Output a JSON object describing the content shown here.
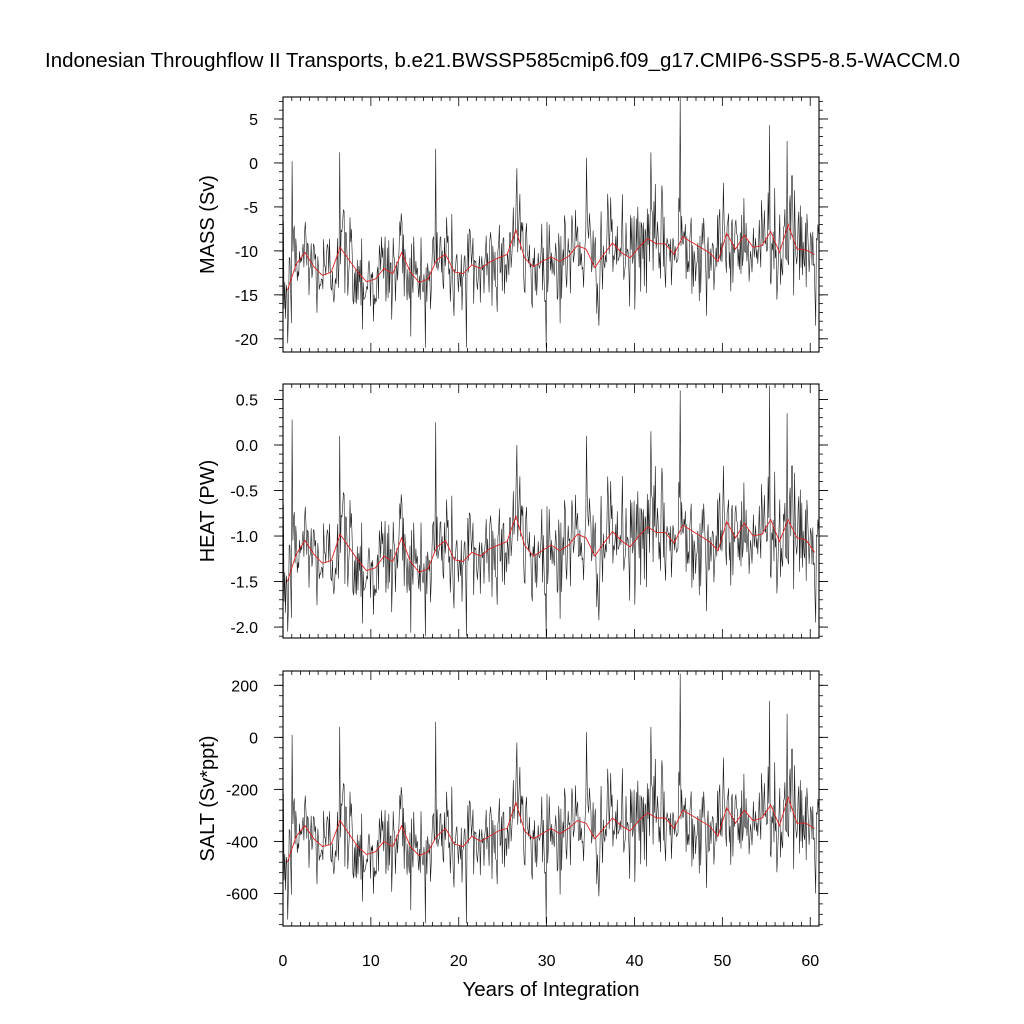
{
  "title": "Indonesian Throughflow II Transports, b.e21.BWSSP585cmip6.f09_g17.CMIP6-SSP5-8.5-WACCM.0",
  "xlabel": "Years of Integration",
  "colors": {
    "monthly": "#1a1a1a",
    "annual": "#e02020",
    "frame": "#000000"
  },
  "chart_data": [
    {
      "type": "line",
      "ylabel": "MASS (Sv)",
      "xlim": [
        0,
        61
      ],
      "ylim": [
        -21.5,
        7.5
      ],
      "yticks": [
        5,
        0,
        -5,
        -10,
        -15,
        -20
      ],
      "ytick_labels": [
        "5",
        "0",
        "-5",
        "-10",
        "-15",
        "-20"
      ],
      "xticks": [
        0,
        10,
        20,
        30,
        40,
        50,
        60
      ],
      "monthly_mean": -11.0,
      "monthly_sd": 3.0,
      "monthly_min": -21.0,
      "monthly_max": 7.4,
      "peaks": [
        [
          0.5,
          -20.5
        ],
        [
          1.0,
          0.2
        ],
        [
          6.4,
          1.2
        ],
        [
          17.3,
          1.6
        ],
        [
          20.8,
          -21.0
        ],
        [
          26.6,
          -0.6
        ],
        [
          34.5,
          0.6
        ],
        [
          41.8,
          1.2
        ],
        [
          45.2,
          7.4
        ],
        [
          55.3,
          4.3
        ],
        [
          57.3,
          2.5
        ],
        [
          60.6,
          -18.5
        ]
      ],
      "annual": [
        -14.5,
        -11.5,
        -10.2,
        -11.8,
        -12.8,
        -12.4,
        -9.6,
        -11.0,
        -12.4,
        -13.5,
        -13.2,
        -12.0,
        -12.6,
        -10.2,
        -12.4,
        -13.6,
        -13.2,
        -11.0,
        -10.4,
        -12.4,
        -12.6,
        -11.6,
        -12.0,
        -11.3,
        -10.8,
        -10.4,
        -7.6,
        -10.8,
        -11.8,
        -11.2,
        -10.7,
        -11.2,
        -10.6,
        -9.4,
        -9.8,
        -11.9,
        -10.4,
        -9.1,
        -10.2,
        -10.8,
        -9.6,
        -8.6,
        -9.2,
        -9.2,
        -10.4,
        -8.4,
        -9.0,
        -9.6,
        -10.2,
        -11.2,
        -8.0,
        -9.8,
        -8.2,
        -9.6,
        -9.4,
        -7.8,
        -10.2,
        -7.0,
        -9.8,
        -9.9,
        -10.4
      ]
    },
    {
      "type": "line",
      "ylabel": "HEAT (PW)",
      "xlim": [
        0,
        61
      ],
      "ylim": [
        -2.12,
        0.67
      ],
      "yticks": [
        0.5,
        0.0,
        -0.5,
        -1.0,
        -1.5,
        -2.0
      ],
      "ytick_labels": [
        "0.5",
        "0.0",
        "-0.5",
        "-1.0",
        "-1.5",
        "-2.0"
      ],
      "xticks": [
        0,
        10,
        20,
        30,
        40,
        50,
        60
      ],
      "monthly_mean": -1.1,
      "monthly_sd": 0.32,
      "monthly_min": -2.1,
      "monthly_max": 0.65,
      "peaks": [
        [
          0.5,
          -2.05
        ],
        [
          1.0,
          0.28
        ],
        [
          6.4,
          0.1
        ],
        [
          17.3,
          0.25
        ],
        [
          20.8,
          -2.1
        ],
        [
          26.6,
          0.0
        ],
        [
          34.5,
          0.1
        ],
        [
          41.8,
          0.15
        ],
        [
          45.2,
          0.6
        ],
        [
          55.3,
          0.65
        ],
        [
          57.3,
          0.35
        ],
        [
          60.6,
          -1.95
        ]
      ],
      "annual": [
        -1.5,
        -1.2,
        -1.05,
        -1.2,
        -1.3,
        -1.27,
        -0.98,
        -1.12,
        -1.26,
        -1.38,
        -1.35,
        -1.22,
        -1.28,
        -1.02,
        -1.28,
        -1.4,
        -1.36,
        -1.12,
        -1.05,
        -1.26,
        -1.28,
        -1.18,
        -1.22,
        -1.14,
        -1.1,
        -1.06,
        -0.78,
        -1.1,
        -1.22,
        -1.16,
        -1.1,
        -1.16,
        -1.1,
        -0.98,
        -1.02,
        -1.22,
        -1.08,
        -0.95,
        -1.05,
        -1.12,
        -1.0,
        -0.9,
        -0.96,
        -0.96,
        -1.08,
        -0.88,
        -0.94,
        -1.0,
        -1.06,
        -1.16,
        -0.84,
        -1.02,
        -0.86,
        -1.0,
        -0.98,
        -0.82,
        -1.06,
        -0.82,
        -1.02,
        -1.04,
        -1.18
      ]
    },
    {
      "type": "line",
      "ylabel": "SALT (Sv*ppt)",
      "xlim": [
        0,
        61
      ],
      "ylim": [
        -725,
        255
      ],
      "yticks": [
        200,
        0,
        -200,
        -400,
        -600
      ],
      "ytick_labels": [
        "200",
        "0",
        "-200",
        "-400",
        "-600"
      ],
      "xticks": [
        0,
        10,
        20,
        30,
        40,
        50,
        60
      ],
      "monthly_mean": -385,
      "monthly_sd": 100,
      "monthly_min": -715,
      "monthly_max": 245,
      "peaks": [
        [
          0.5,
          -700
        ],
        [
          1.0,
          10
        ],
        [
          6.4,
          40
        ],
        [
          17.3,
          60
        ],
        [
          20.8,
          -715
        ],
        [
          26.6,
          -20
        ],
        [
          34.5,
          20
        ],
        [
          41.8,
          40
        ],
        [
          45.2,
          245
        ],
        [
          55.3,
          140
        ],
        [
          57.3,
          90
        ],
        [
          60.6,
          -600
        ]
      ],
      "annual": [
        -480,
        -380,
        -340,
        -390,
        -420,
        -410,
        -320,
        -370,
        -420,
        -450,
        -440,
        -400,
        -420,
        -340,
        -420,
        -455,
        -440,
        -380,
        -350,
        -410,
        -420,
        -380,
        -400,
        -380,
        -360,
        -350,
        -250,
        -360,
        -390,
        -370,
        -350,
        -370,
        -350,
        -320,
        -330,
        -390,
        -350,
        -310,
        -340,
        -360,
        -320,
        -290,
        -310,
        -310,
        -350,
        -280,
        -300,
        -320,
        -340,
        -380,
        -270,
        -330,
        -280,
        -320,
        -310,
        -260,
        -340,
        -230,
        -330,
        -330,
        -350
      ]
    }
  ]
}
